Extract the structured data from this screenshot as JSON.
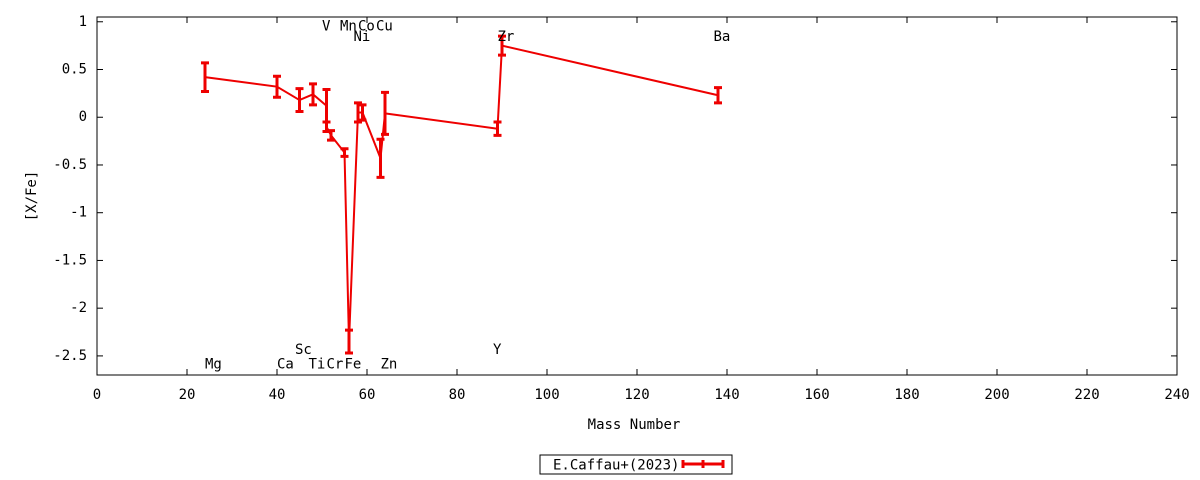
{
  "chart_data": {
    "type": "errorbar-line",
    "xlabel": "Mass Number",
    "ylabel": "[X/Fe]",
    "xlim": [
      0,
      240
    ],
    "xticks": [
      0,
      20,
      40,
      60,
      80,
      100,
      120,
      140,
      160,
      180,
      200,
      220,
      240
    ],
    "ylim": [
      -2.7,
      1.05
    ],
    "yticks": [
      1,
      0.5,
      0,
      -0.5,
      -1,
      -1.5,
      -2,
      -2.5
    ],
    "legend": "bottom-center",
    "series": [
      {
        "name": "E.Caffau+(2023)",
        "color": "#ee0000",
        "x": [
          24,
          40,
          45,
          48,
          51,
          51,
          52,
          55,
          56,
          58,
          59,
          63,
          64,
          89,
          90,
          138
        ],
        "values": [
          0.42,
          0.32,
          0.18,
          0.24,
          0.12,
          -0.1,
          -0.19,
          -0.37,
          -2.35,
          0.05,
          0.05,
          -0.43,
          0.04,
          -0.12,
          0.75,
          0.23
        ],
        "errors": [
          0.15,
          0.11,
          0.12,
          0.11,
          0.17,
          0.05,
          0.05,
          0.04,
          0.12,
          0.1,
          0.08,
          0.2,
          0.22,
          0.07,
          0.1,
          0.08
        ]
      }
    ],
    "annotations": [
      {
        "text": "Mg",
        "x": 24,
        "y": -2.59
      },
      {
        "text": "Ca",
        "x": 40,
        "y": -2.59
      },
      {
        "text": "Sc",
        "x": 44,
        "y": -2.44
      },
      {
        "text": "Ti",
        "x": 47,
        "y": -2.59
      },
      {
        "text": "V",
        "x": 50,
        "y": 0.95
      },
      {
        "text": "Cr",
        "x": 51,
        "y": -2.59
      },
      {
        "text": "Mn",
        "x": 54,
        "y": 0.95
      },
      {
        "text": "Fe",
        "x": 55,
        "y": -2.59
      },
      {
        "text": "Co",
        "x": 58,
        "y": 0.95
      },
      {
        "text": "Ni",
        "x": 57,
        "y": 0.84
      },
      {
        "text": "Cu",
        "x": 62,
        "y": 0.95
      },
      {
        "text": "Zn",
        "x": 63,
        "y": -2.59
      },
      {
        "text": "Y",
        "x": 88,
        "y": -2.44
      },
      {
        "text": "Zr",
        "x": 89,
        "y": 0.84
      },
      {
        "text": "Ba",
        "x": 137,
        "y": 0.84
      }
    ]
  }
}
